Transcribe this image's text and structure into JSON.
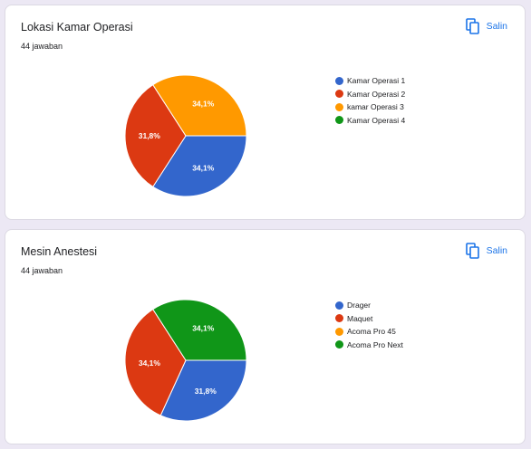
{
  "charts": [
    {
      "title": "Lokasi Kamar Operasi",
      "responses": "44 jawaban",
      "copy_label": "Salin",
      "copy_icon": "copy-icon"
    },
    {
      "title": "Mesin Anestesi",
      "responses": "44 jawaban",
      "copy_label": "Salin",
      "copy_icon": "copy-icon"
    }
  ],
  "colors": {
    "blue": "#3366cc",
    "red": "#dc3912",
    "orange": "#ff9900",
    "green": "#109618",
    "accent": "#1a73e8"
  },
  "chart_data": [
    {
      "type": "pie",
      "title": "Lokasi Kamar Operasi",
      "legend_position": "right",
      "categories": [
        "Kamar Operasi 1",
        "Kamar Operasi 2",
        "kamar Operasi 3",
        "Kamar Operasi 4"
      ],
      "values": [
        34.1,
        31.8,
        34.1,
        0
      ],
      "labels": [
        "34,1%",
        "31,8%",
        "34,1%",
        ""
      ],
      "colors": [
        "#3366cc",
        "#dc3912",
        "#ff9900",
        "#109618"
      ]
    },
    {
      "type": "pie",
      "title": "Mesin Anestesi",
      "legend_position": "right",
      "categories": [
        "Drager",
        "Maquet",
        "Acoma Pro 45",
        "Acoma Pro Next"
      ],
      "values": [
        31.8,
        34.1,
        0,
        34.1
      ],
      "labels": [
        "31,8%",
        "34,1%",
        "",
        "34,1%"
      ],
      "colors": [
        "#3366cc",
        "#dc3912",
        "#ff9900",
        "#109618"
      ]
    }
  ]
}
